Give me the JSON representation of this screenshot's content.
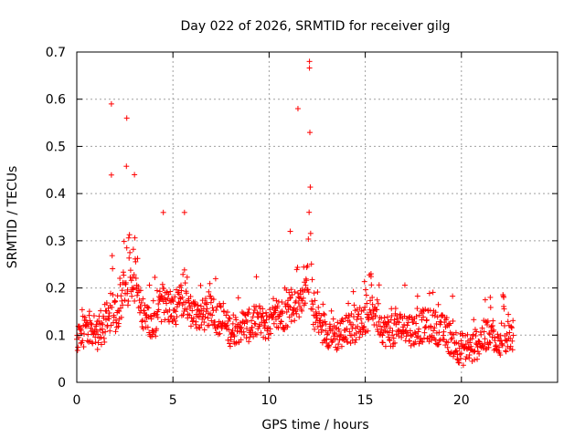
{
  "chart_data": {
    "type": "scatter",
    "title": "Day 022 of 2026, SRMTID for receiver gilg",
    "xlabel": "GPS time / hours",
    "ylabel": "SRMTID / TECUs",
    "xlim": [
      0,
      25
    ],
    "ylim": [
      0,
      0.7
    ],
    "xticks": [
      "0",
      "5",
      "10",
      "15",
      "20"
    ],
    "xtick_values": [
      0,
      5,
      10,
      15,
      20
    ],
    "yticks": [
      "0",
      "0.1",
      "0.2",
      "0.3",
      "0.4",
      "0.5",
      "0.6",
      "0.7"
    ],
    "ytick_values": [
      0,
      0.1,
      0.2,
      0.3,
      0.4,
      0.5,
      0.6,
      0.7
    ],
    "grid": true,
    "marker": "+",
    "series_color": "#ff0000",
    "series": [
      {
        "name": "SRMTID",
        "x_start": 0.0,
        "x_step": 0.02,
        "baseline_profile": [
          [
            0.0,
            0.1
          ],
          [
            0.5,
            0.11
          ],
          [
            1.0,
            0.1
          ],
          [
            1.5,
            0.12
          ],
          [
            2.0,
            0.14
          ],
          [
            2.5,
            0.18
          ],
          [
            3.0,
            0.2
          ],
          [
            3.5,
            0.14
          ],
          [
            4.0,
            0.12
          ],
          [
            4.5,
            0.17
          ],
          [
            5.0,
            0.15
          ],
          [
            5.5,
            0.17
          ],
          [
            6.0,
            0.15
          ],
          [
            6.5,
            0.14
          ],
          [
            7.0,
            0.15
          ],
          [
            7.5,
            0.13
          ],
          [
            8.0,
            0.11
          ],
          [
            8.5,
            0.12
          ],
          [
            9.0,
            0.12
          ],
          [
            9.5,
            0.13
          ],
          [
            10.0,
            0.12
          ],
          [
            10.5,
            0.14
          ],
          [
            11.0,
            0.15
          ],
          [
            11.5,
            0.17
          ],
          [
            12.0,
            0.19
          ],
          [
            12.5,
            0.13
          ],
          [
            13.0,
            0.11
          ],
          [
            13.5,
            0.1
          ],
          [
            14.0,
            0.11
          ],
          [
            14.5,
            0.12
          ],
          [
            15.0,
            0.14
          ],
          [
            15.5,
            0.15
          ],
          [
            16.0,
            0.11
          ],
          [
            16.5,
            0.11
          ],
          [
            17.0,
            0.12
          ],
          [
            17.5,
            0.11
          ],
          [
            18.0,
            0.12
          ],
          [
            18.5,
            0.12
          ],
          [
            19.0,
            0.11
          ],
          [
            19.5,
            0.09
          ],
          [
            20.0,
            0.07
          ],
          [
            20.5,
            0.07
          ],
          [
            21.0,
            0.09
          ],
          [
            21.5,
            0.11
          ],
          [
            22.0,
            0.09
          ],
          [
            22.5,
            0.1
          ],
          [
            22.7,
            0.1
          ]
        ],
        "x_end": 22.7,
        "peaks": [
          {
            "x": 1.8,
            "y": 0.59,
            "width": 0.12
          },
          {
            "x": 2.6,
            "y": 0.56,
            "width": 0.35
          },
          {
            "x": 3.0,
            "y": 0.44,
            "width": 0.25
          },
          {
            "x": 4.5,
            "y": 0.36,
            "width": 0.12
          },
          {
            "x": 5.6,
            "y": 0.36,
            "width": 0.15
          },
          {
            "x": 11.5,
            "y": 0.58,
            "width": 0.15
          },
          {
            "x": 12.1,
            "y": 0.68,
            "width": 0.18
          },
          {
            "x": 11.1,
            "y": 0.32,
            "width": 0.12
          },
          {
            "x": 15.3,
            "y": 0.23,
            "width": 0.2
          },
          {
            "x": 21.5,
            "y": 0.18,
            "width": 0.2
          },
          {
            "x": 22.2,
            "y": 0.18,
            "width": 0.15
          }
        ],
        "spread": 0.035
      }
    ]
  }
}
